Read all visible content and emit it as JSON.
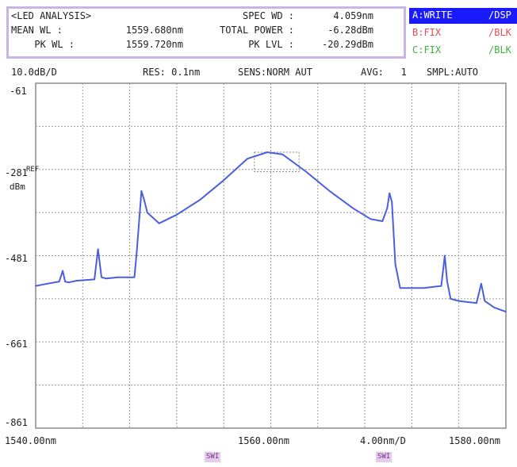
{
  "header": {
    "analysis_title": "<LED ANALYSIS>",
    "mean_wl_label": "MEAN WL :",
    "mean_wl_value": "1559.680nm",
    "pk_wl_label": "PK WL :",
    "pk_wl_value": "1559.720nm",
    "spec_wd_label": "SPEC WD :",
    "spec_wd_value": "4.059nm",
    "total_power_label": "TOTAL POWER :",
    "total_power_value": "-6.28dBm",
    "pk_lvl_label": "PK LVL :",
    "pk_lvl_value": "-20.29dBm"
  },
  "traces": [
    {
      "name": "A:WRITE",
      "mode": "/DSP",
      "color": "#1a1aff",
      "selected": true
    },
    {
      "name": "B:FIX",
      "mode": "/BLK",
      "color": "#e05050",
      "selected": false
    },
    {
      "name": "C:FIX",
      "mode": "/BLK",
      "color": "#40b040",
      "selected": false
    }
  ],
  "settings": {
    "scale": "10.0dB/D",
    "res": "RES: 0.1nm",
    "sens": "SENS:NORM AUT",
    "avg": "AVG:   1",
    "smpl": "SMPL:AUTO"
  },
  "axis": {
    "y_ticks": [
      "-61",
      "-281",
      "-481",
      "-661",
      "-861"
    ],
    "ref_label": "REF",
    "unit_label": "dBm",
    "x_start": "1540.00nm",
    "x_center": "1560.00nm",
    "x_span_per_div": "4.00nm/D",
    "x_end": "1580.00nm"
  },
  "markers": {
    "left": "SWI",
    "right": "SWI"
  },
  "chart_data": {
    "type": "line",
    "title": "",
    "xlabel": "",
    "ylabel": "",
    "xlim": [
      1540,
      1580
    ],
    "ylim": [
      -86,
      -6
    ],
    "grid": true,
    "series": [
      {
        "color": "#4a5fe0",
        "x": [
          1540.0,
          1541.0,
          1542.0,
          1542.3,
          1542.5,
          1542.8,
          1543.5,
          1545.0,
          1545.3,
          1545.6,
          1546.0,
          1547.0,
          1548.4,
          1548.6,
          1549.0,
          1549.2,
          1549.5,
          1550.5,
          1552.0,
          1554.0,
          1556.0,
          1558.0,
          1559.7,
          1561.0,
          1563.0,
          1565.0,
          1567.0,
          1568.5,
          1569.5,
          1569.9,
          1570.1,
          1570.3,
          1570.6,
          1571.0,
          1573.0,
          1574.5,
          1574.8,
          1575.0,
          1575.3,
          1576.0,
          1577.5,
          1577.9,
          1578.2,
          1579.0,
          1580.0
        ],
        "y": [
          -53.0,
          -52.5,
          -52.0,
          -49.5,
          -52.0,
          -52.2,
          -51.8,
          -51.5,
          -44.5,
          -51.0,
          -51.3,
          -51.0,
          -51.0,
          -45.0,
          -31.0,
          -32.8,
          -36.0,
          -38.5,
          -36.5,
          -33.0,
          -28.5,
          -23.5,
          -22.0,
          -22.5,
          -26.5,
          -31.0,
          -35.0,
          -37.5,
          -38.0,
          -35.0,
          -31.5,
          -33.5,
          -48.0,
          -53.5,
          -53.5,
          -53.0,
          -46.0,
          -52.0,
          -56.0,
          -56.5,
          -57.0,
          -52.5,
          -56.5,
          -58.0,
          -59.0
        ]
      }
    ]
  }
}
